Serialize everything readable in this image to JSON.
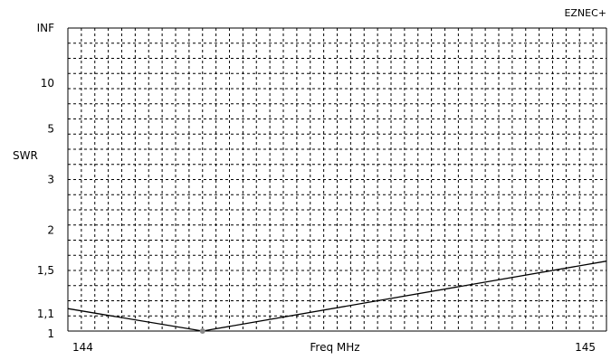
{
  "app": {
    "brand": "EZNEC+"
  },
  "chart_data": {
    "type": "line",
    "title": "",
    "xlabel": "Freq MHz",
    "ylabel": "SWR",
    "xlim": [
      144,
      145
    ],
    "y_scale": "reflection (swr mapped via |rho|)",
    "y_ticks": [
      {
        "value": 1,
        "label": "1"
      },
      {
        "value": 1.1,
        "label": "1,1"
      },
      {
        "value": 1.5,
        "label": "1,5"
      },
      {
        "value": 2,
        "label": "2"
      },
      {
        "value": 3,
        "label": "3"
      },
      {
        "value": 5,
        "label": "5"
      },
      {
        "value": 10,
        "label": "10"
      },
      {
        "value": "INF",
        "label": "INF"
      }
    ],
    "x_ticks": [
      {
        "value": 144,
        "label": "144"
      },
      {
        "value": 145,
        "label": "145"
      }
    ],
    "grid": true,
    "x_grid_divisions": 40,
    "y_grid_divisions": 20,
    "series": [
      {
        "x": [
          144.0,
          144.25,
          145.0
        ],
        "y": [
          1.16,
          1.0,
          1.6
        ]
      }
    ],
    "marker": {
      "x": 144.25,
      "y": 1.0,
      "color": "#8a8a8a"
    },
    "line_color": "#000000"
  }
}
